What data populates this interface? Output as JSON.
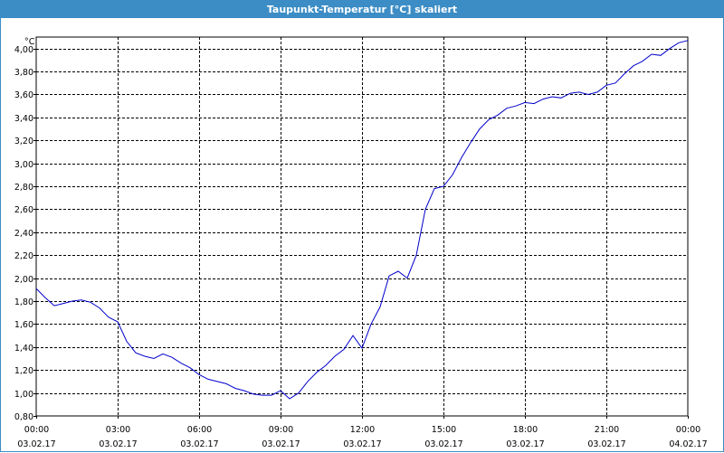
{
  "window": {
    "title": "Taupunkt-Temperatur [°C] skaliert"
  },
  "colors": {
    "titlebar": "#3c8dc5",
    "series": "#0000cc",
    "grid": "#000000"
  },
  "chart_data": {
    "type": "line",
    "title": "Taupunkt-Temperatur [°C] skaliert",
    "unit_label": "°C",
    "xlim": [
      "03.02.17 00:00",
      "04.02.17 00:00"
    ],
    "ylim": [
      0.8,
      4.1
    ],
    "grid": true,
    "x_ticks": [
      {
        "time": "00:00",
        "date": "03.02.17"
      },
      {
        "time": "03:00",
        "date": "03.02.17"
      },
      {
        "time": "06:00",
        "date": "03.02.17"
      },
      {
        "time": "09:00",
        "date": "03.02.17"
      },
      {
        "time": "12:00",
        "date": "03.02.17"
      },
      {
        "time": "15:00",
        "date": "03.02.17"
      },
      {
        "time": "18:00",
        "date": "03.02.17"
      },
      {
        "time": "21:00",
        "date": "03.02.17"
      },
      {
        "time": "00:00",
        "date": "04.02.17"
      }
    ],
    "y_ticks": [
      "0,80",
      "1,00",
      "1,20",
      "1,40",
      "1,60",
      "1,80",
      "2,00",
      "2,20",
      "2,40",
      "2,60",
      "2,80",
      "3,00",
      "3,20",
      "3,40",
      "3,60",
      "3,80",
      "4,00"
    ],
    "series": [
      {
        "x": [
          "00:00",
          "00:20",
          "00:40",
          "01:00",
          "01:20",
          "01:40",
          "02:00",
          "02:20",
          "02:40",
          "03:00",
          "03:20",
          "03:40",
          "04:00",
          "04:20",
          "04:40",
          "05:00",
          "05:20",
          "05:40",
          "06:00",
          "06:20",
          "06:40",
          "07:00",
          "07:20",
          "07:40",
          "08:00",
          "08:20",
          "08:40",
          "09:00",
          "09:20",
          "09:40",
          "10:00",
          "10:20",
          "10:40",
          "11:00",
          "11:20",
          "11:40",
          "12:00",
          "12:20",
          "12:40",
          "13:00",
          "13:20",
          "13:40",
          "14:00",
          "14:20",
          "14:40",
          "15:00",
          "15:20",
          "15:40",
          "16:00",
          "16:20",
          "16:40",
          "17:00",
          "17:20",
          "17:40",
          "18:00",
          "18:20",
          "18:40",
          "19:00",
          "19:20",
          "19:40",
          "20:00",
          "20:20",
          "20:40",
          "21:00",
          "21:20",
          "21:40",
          "22:00",
          "22:20",
          "22:40",
          "23:00",
          "23:20",
          "23:40",
          "24:00"
        ],
        "y": [
          1.91,
          1.83,
          1.76,
          1.78,
          1.8,
          1.81,
          1.79,
          1.74,
          1.66,
          1.62,
          1.45,
          1.35,
          1.32,
          1.3,
          1.34,
          1.31,
          1.26,
          1.22,
          1.16,
          1.12,
          1.1,
          1.08,
          1.04,
          1.02,
          0.99,
          0.98,
          0.98,
          1.02,
          0.95,
          1.0,
          1.1,
          1.18,
          1.24,
          1.32,
          1.38,
          1.5,
          1.39,
          1.6,
          1.75,
          2.02,
          2.06,
          2.0,
          2.2,
          2.6,
          2.78,
          2.8,
          2.9,
          3.05,
          3.18,
          3.3,
          3.38,
          3.42,
          3.48,
          3.5,
          3.53,
          3.52,
          3.56,
          3.58,
          3.57,
          3.61,
          3.62,
          3.6,
          3.62,
          3.68,
          3.7,
          3.78,
          3.85,
          3.89,
          3.95,
          3.94,
          4.0,
          4.05,
          4.07
        ]
      }
    ]
  }
}
